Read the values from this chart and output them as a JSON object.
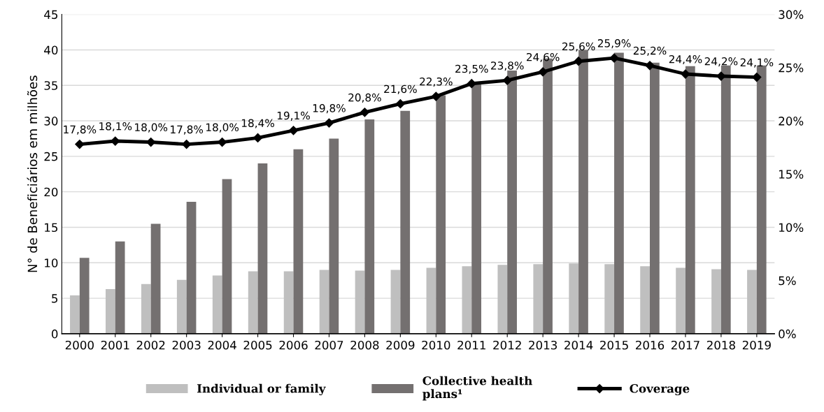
{
  "chart_data": {
    "type": "bar",
    "ylabel": "N° de Beneficiários em milhões",
    "categories": [
      "2000",
      "2001",
      "2002",
      "2003",
      "2004",
      "2005",
      "2006",
      "2007",
      "2008",
      "2009",
      "2010",
      "2011",
      "2012",
      "2013",
      "2014",
      "2015",
      "2016",
      "2017",
      "2018",
      "2019"
    ],
    "series": [
      {
        "name": "Individual or family",
        "color": "#bfbfbf",
        "values": [
          5.4,
          6.3,
          7.0,
          7.6,
          8.2,
          8.8,
          8.8,
          9.0,
          8.9,
          9.0,
          9.3,
          9.5,
          9.7,
          9.8,
          9.9,
          9.8,
          9.5,
          9.3,
          9.1,
          9.0
        ]
      },
      {
        "name": "Collective health\nplans¹",
        "color": "#747070",
        "values": [
          10.7,
          13.0,
          15.5,
          18.6,
          21.8,
          24.0,
          26.0,
          27.5,
          30.2,
          31.4,
          33.6,
          35.3,
          37.1,
          38.8,
          40.0,
          39.6,
          38.2,
          37.7,
          37.8,
          37.8
        ]
      },
      {
        "name": "Coverage",
        "type": "line",
        "axis": "y2",
        "color": "#000000",
        "marker": "diamond",
        "line_style": "solid",
        "values": [
          17.8,
          18.1,
          18.0,
          17.8,
          18.0,
          18.4,
          19.1,
          19.8,
          20.8,
          21.6,
          22.3,
          23.5,
          23.8,
          24.6,
          25.6,
          25.9,
          25.2,
          24.4,
          24.2,
          24.1
        ],
        "value_labels": [
          "17,8%",
          "18,1%",
          "18,0%",
          "17,8%",
          "18,0%",
          "18,4%",
          "19,1%",
          "19,8%",
          "20,8%",
          "21,6%",
          "22,3%",
          "23,5%",
          "23,8%",
          "24,6%",
          "25,6%",
          "25,9%",
          "25,2%",
          "24,4%",
          "24,2%",
          "24,1%"
        ]
      }
    ],
    "ylim": [
      0,
      45
    ],
    "yticks": [
      0,
      5,
      10,
      15,
      20,
      25,
      30,
      35,
      40,
      45
    ],
    "y2lim": [
      0,
      30
    ],
    "y2ticks": [
      {
        "value": 0,
        "label": "0%"
      },
      {
        "value": 5,
        "label": "5%"
      },
      {
        "value": 10,
        "label": "10%"
      },
      {
        "value": 15,
        "label": "15%"
      },
      {
        "value": 20,
        "label": "20%"
      },
      {
        "value": 25,
        "label": "25%"
      },
      {
        "value": 30,
        "label": "30%"
      }
    ],
    "grid": "y",
    "legend": "bottom"
  }
}
